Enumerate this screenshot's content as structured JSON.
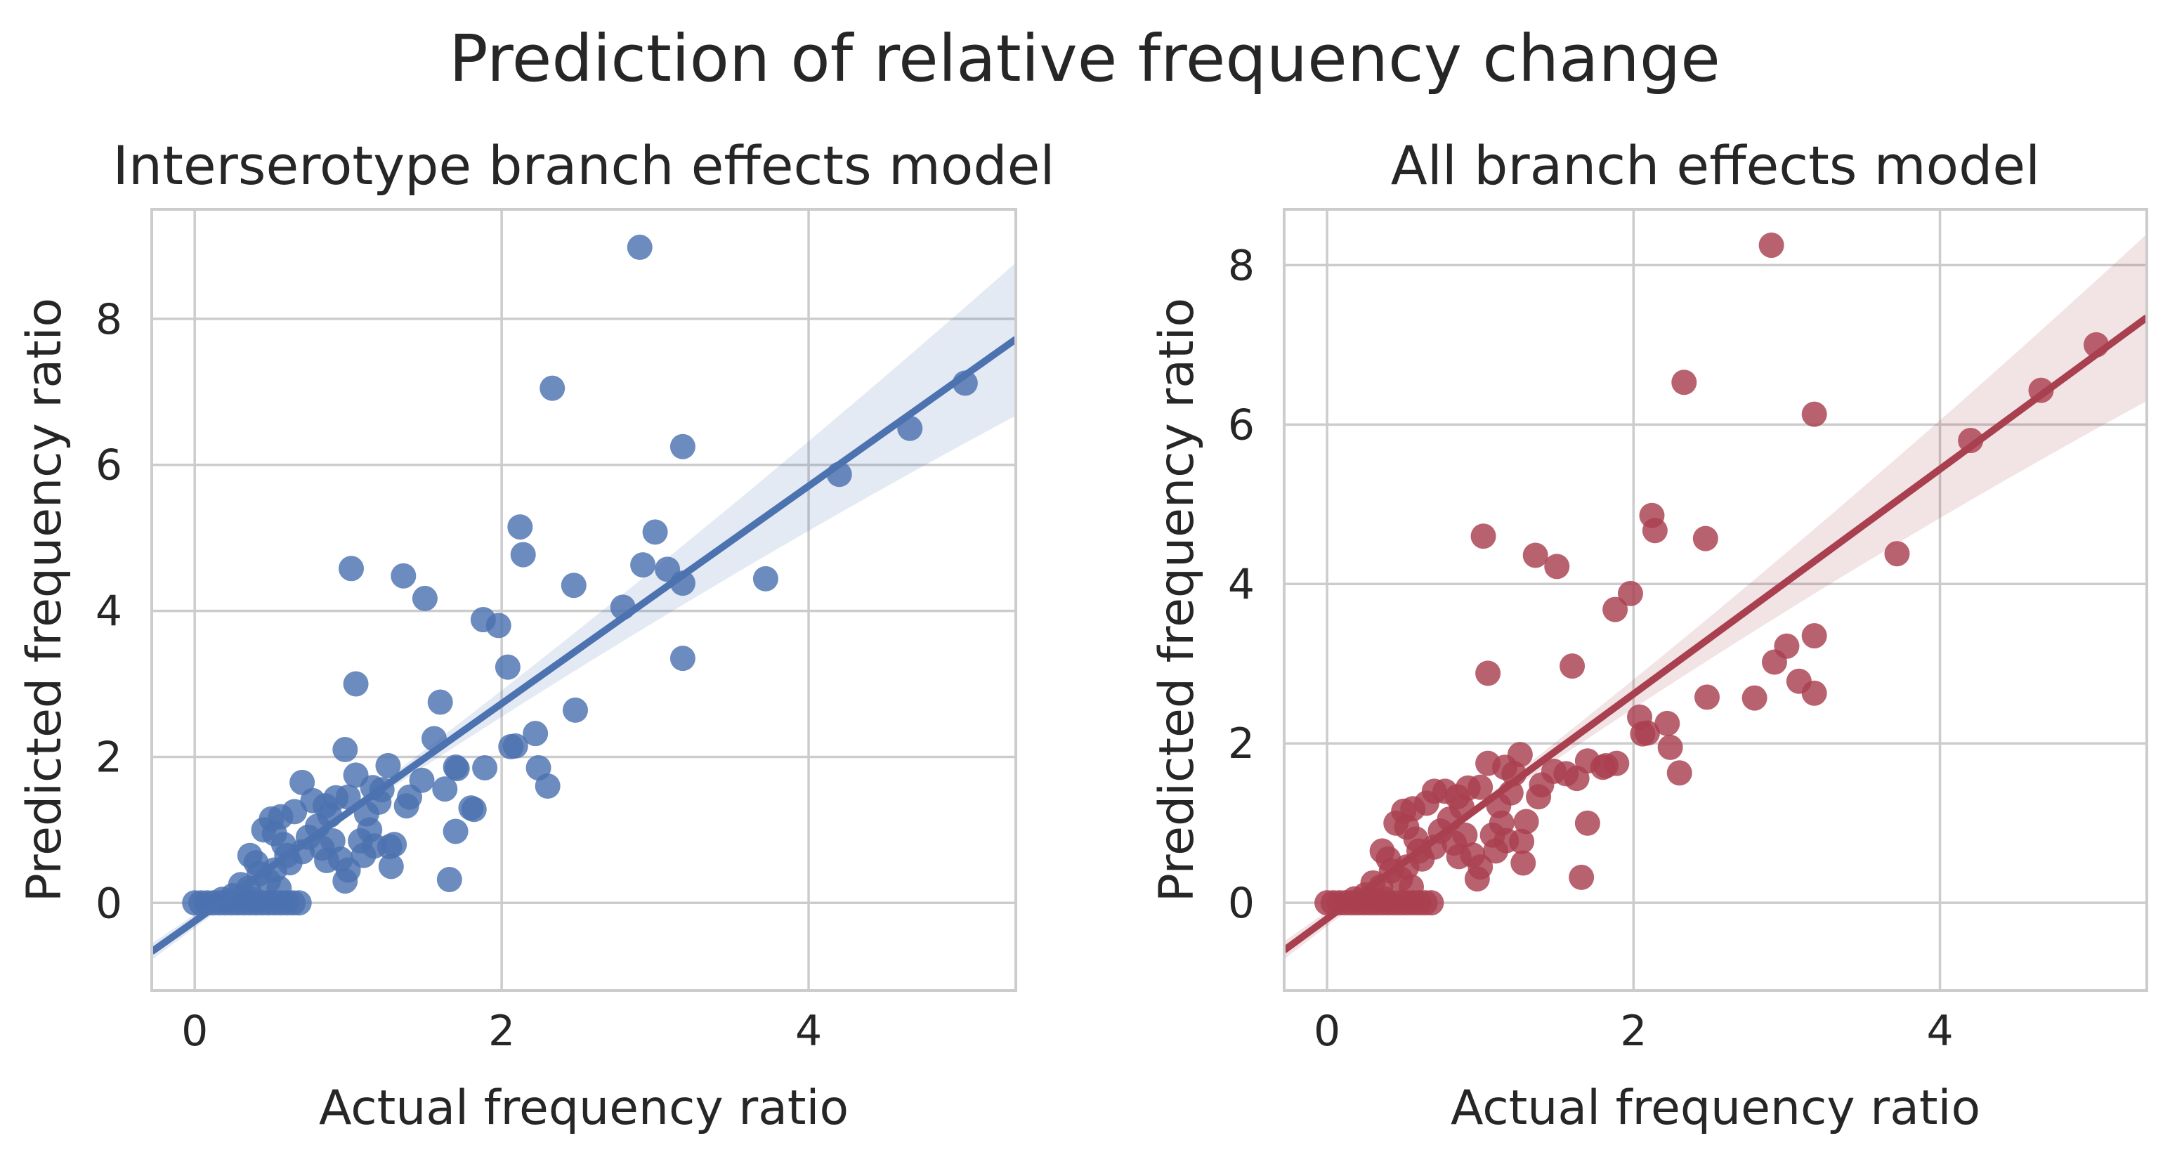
{
  "figure": {
    "title": "Prediction of relative frequency change"
  },
  "chart_data": [
    {
      "type": "scatter",
      "title": "Interserotype branch effects model",
      "xlabel": "Actual frequency ratio",
      "ylabel": "Predicted frequency ratio",
      "xlim": [
        -0.28,
        5.35
      ],
      "ylim": [
        -1.2,
        9.5
      ],
      "xticks": [
        0,
        2,
        4
      ],
      "yticks": [
        0,
        2,
        4,
        6,
        8
      ],
      "grid": true,
      "color": "#4c72b0",
      "regression": {
        "slope": 1.49,
        "intercept": -0.25,
        "ci_start": 0.06,
        "ci_slope": 0.09
      },
      "points": [
        [
          2.9,
          8.98
        ],
        [
          2.33,
          7.05
        ],
        [
          5.02,
          7.12
        ],
        [
          4.66,
          6.5
        ],
        [
          3.18,
          6.25
        ],
        [
          4.2,
          5.87
        ],
        [
          2.12,
          5.15
        ],
        [
          3.0,
          5.08
        ],
        [
          2.14,
          4.77
        ],
        [
          2.92,
          4.63
        ],
        [
          3.08,
          4.57
        ],
        [
          1.02,
          4.58
        ],
        [
          1.36,
          4.48
        ],
        [
          3.72,
          4.44
        ],
        [
          3.18,
          4.38
        ],
        [
          2.47,
          4.35
        ],
        [
          1.5,
          4.17
        ],
        [
          2.79,
          4.05
        ],
        [
          1.88,
          3.88
        ],
        [
          1.98,
          3.8
        ],
        [
          3.18,
          3.35
        ],
        [
          2.04,
          3.23
        ],
        [
          1.05,
          3.0
        ],
        [
          1.6,
          2.75
        ],
        [
          2.48,
          2.64
        ],
        [
          1.56,
          2.25
        ],
        [
          2.22,
          2.32
        ],
        [
          2.06,
          2.14
        ],
        [
          2.09,
          2.15
        ],
        [
          0.98,
          2.1
        ],
        [
          1.26,
          1.88
        ],
        [
          1.7,
          1.86
        ],
        [
          1.71,
          1.84
        ],
        [
          1.89,
          1.85
        ],
        [
          2.24,
          1.85
        ],
        [
          2.3,
          1.6
        ],
        [
          1.05,
          1.75
        ],
        [
          1.16,
          1.58
        ],
        [
          1.22,
          1.55
        ],
        [
          1.48,
          1.68
        ],
        [
          1.63,
          1.56
        ],
        [
          1.4,
          1.45
        ],
        [
          1.38,
          1.33
        ],
        [
          1.2,
          1.38
        ],
        [
          1.12,
          1.22
        ],
        [
          1.0,
          1.45
        ],
        [
          0.92,
          1.44
        ],
        [
          0.85,
          1.33
        ],
        [
          0.7,
          1.65
        ],
        [
          0.77,
          1.4
        ],
        [
          0.88,
          1.2
        ],
        [
          0.65,
          1.25
        ],
        [
          0.56,
          1.18
        ],
        [
          0.5,
          1.15
        ],
        [
          0.45,
          1.0
        ],
        [
          0.52,
          0.95
        ],
        [
          0.58,
          0.8
        ],
        [
          0.6,
          0.65
        ],
        [
          0.62,
          0.55
        ],
        [
          0.7,
          0.7
        ],
        [
          0.74,
          0.9
        ],
        [
          0.8,
          1.05
        ],
        [
          0.83,
          0.75
        ],
        [
          0.86,
          0.58
        ],
        [
          0.9,
          0.85
        ],
        [
          0.95,
          0.6
        ],
        [
          0.98,
          0.3
        ],
        [
          1.0,
          0.45
        ],
        [
          1.08,
          0.85
        ],
        [
          1.1,
          0.65
        ],
        [
          1.14,
          1.0
        ],
        [
          1.17,
          0.78
        ],
        [
          1.27,
          0.77
        ],
        [
          1.28,
          0.5
        ],
        [
          1.3,
          0.8
        ],
        [
          1.8,
          1.3
        ],
        [
          1.82,
          1.28
        ],
        [
          1.7,
          0.98
        ],
        [
          1.66,
          0.32
        ],
        [
          0.36,
          0.65
        ],
        [
          0.4,
          0.55
        ],
        [
          0.42,
          0.4
        ],
        [
          0.48,
          0.3
        ],
        [
          0.52,
          0.45
        ],
        [
          0.55,
          0.2
        ],
        [
          0.35,
          0.2
        ],
        [
          0.3,
          0.25
        ],
        [
          0.25,
          0.1
        ],
        [
          0.18,
          0.05
        ],
        [
          0.38,
          0.05
        ],
        [
          0.0,
          0.0
        ],
        [
          0.04,
          0.0
        ],
        [
          0.08,
          0.0
        ],
        [
          0.12,
          0.0
        ],
        [
          0.16,
          0.0
        ],
        [
          0.2,
          0.0
        ],
        [
          0.24,
          0.0
        ],
        [
          0.28,
          0.0
        ],
        [
          0.32,
          0.0
        ],
        [
          0.36,
          0.0
        ],
        [
          0.4,
          0.0
        ],
        [
          0.44,
          0.0
        ],
        [
          0.48,
          0.0
        ],
        [
          0.52,
          0.0
        ],
        [
          0.56,
          0.0
        ],
        [
          0.6,
          0.0
        ],
        [
          0.64,
          0.0
        ],
        [
          0.68,
          0.0
        ]
      ]
    },
    {
      "type": "scatter",
      "title": "All branch effects model",
      "xlabel": "Actual frequency ratio",
      "ylabel": "Predicted frequency ratio",
      "xlim": [
        -0.28,
        5.35
      ],
      "ylim": [
        -1.1,
        8.7
      ],
      "xticks": [
        0,
        2,
        4
      ],
      "yticks": [
        0,
        2,
        4,
        6,
        8
      ],
      "grid": true,
      "color": "#a9404f",
      "regression": {
        "slope": 1.41,
        "intercept": -0.2,
        "ci_start": 0.06,
        "ci_slope": 0.09
      },
      "points": [
        [
          2.9,
          8.25
        ],
        [
          2.33,
          6.53
        ],
        [
          5.02,
          7.0
        ],
        [
          4.66,
          6.43
        ],
        [
          3.18,
          6.13
        ],
        [
          4.2,
          5.8
        ],
        [
          2.12,
          4.86
        ],
        [
          2.14,
          4.67
        ],
        [
          1.02,
          4.6
        ],
        [
          2.47,
          4.57
        ],
        [
          3.72,
          4.38
        ],
        [
          1.36,
          4.36
        ],
        [
          1.5,
          4.22
        ],
        [
          1.98,
          3.88
        ],
        [
          1.88,
          3.68
        ],
        [
          3.18,
          3.35
        ],
        [
          3.0,
          3.22
        ],
        [
          2.92,
          3.02
        ],
        [
          1.6,
          2.97
        ],
        [
          1.05,
          2.88
        ],
        [
          3.08,
          2.78
        ],
        [
          3.18,
          2.63
        ],
        [
          2.48,
          2.58
        ],
        [
          2.79,
          2.57
        ],
        [
          2.04,
          2.33
        ],
        [
          2.22,
          2.25
        ],
        [
          2.06,
          2.12
        ],
        [
          2.09,
          2.13
        ],
        [
          2.24,
          1.95
        ],
        [
          1.26,
          1.86
        ],
        [
          1.7,
          1.78
        ],
        [
          1.89,
          1.75
        ],
        [
          2.3,
          1.63
        ],
        [
          1.56,
          1.62
        ],
        [
          1.05,
          1.75
        ],
        [
          1.16,
          1.7
        ],
        [
          1.22,
          1.62
        ],
        [
          1.48,
          1.65
        ],
        [
          1.63,
          1.56
        ],
        [
          1.4,
          1.48
        ],
        [
          1.38,
          1.33
        ],
        [
          1.2,
          1.38
        ],
        [
          1.12,
          1.22
        ],
        [
          1.0,
          1.45
        ],
        [
          0.92,
          1.44
        ],
        [
          0.85,
          1.33
        ],
        [
          0.7,
          1.4
        ],
        [
          0.77,
          1.4
        ],
        [
          0.88,
          1.2
        ],
        [
          0.65,
          1.25
        ],
        [
          0.56,
          1.18
        ],
        [
          0.5,
          1.15
        ],
        [
          0.45,
          1.0
        ],
        [
          0.52,
          0.95
        ],
        [
          0.58,
          0.8
        ],
        [
          0.6,
          0.65
        ],
        [
          0.62,
          0.55
        ],
        [
          0.7,
          0.7
        ],
        [
          0.74,
          0.9
        ],
        [
          0.8,
          1.05
        ],
        [
          0.83,
          0.75
        ],
        [
          0.86,
          0.58
        ],
        [
          0.9,
          0.85
        ],
        [
          0.95,
          0.6
        ],
        [
          0.98,
          0.3
        ],
        [
          1.0,
          0.45
        ],
        [
          1.08,
          0.85
        ],
        [
          1.1,
          0.65
        ],
        [
          1.14,
          1.0
        ],
        [
          1.17,
          0.78
        ],
        [
          1.27,
          0.77
        ],
        [
          1.28,
          0.5
        ],
        [
          1.3,
          1.02
        ],
        [
          1.8,
          1.7
        ],
        [
          1.82,
          1.72
        ],
        [
          1.7,
          1.0
        ],
        [
          1.66,
          0.32
        ],
        [
          0.36,
          0.65
        ],
        [
          0.4,
          0.55
        ],
        [
          0.42,
          0.4
        ],
        [
          0.48,
          0.3
        ],
        [
          0.52,
          0.45
        ],
        [
          0.55,
          0.2
        ],
        [
          0.35,
          0.2
        ],
        [
          0.3,
          0.25
        ],
        [
          0.25,
          0.1
        ],
        [
          0.18,
          0.05
        ],
        [
          0.38,
          0.05
        ],
        [
          0.0,
          0.0
        ],
        [
          0.04,
          0.0
        ],
        [
          0.08,
          0.0
        ],
        [
          0.12,
          0.0
        ],
        [
          0.16,
          0.0
        ],
        [
          0.2,
          0.0
        ],
        [
          0.24,
          0.0
        ],
        [
          0.28,
          0.0
        ],
        [
          0.32,
          0.0
        ],
        [
          0.36,
          0.0
        ],
        [
          0.4,
          0.0
        ],
        [
          0.44,
          0.0
        ],
        [
          0.48,
          0.0
        ],
        [
          0.52,
          0.0
        ],
        [
          0.56,
          0.0
        ],
        [
          0.6,
          0.0
        ],
        [
          0.64,
          0.0
        ],
        [
          0.68,
          0.0
        ]
      ]
    }
  ]
}
